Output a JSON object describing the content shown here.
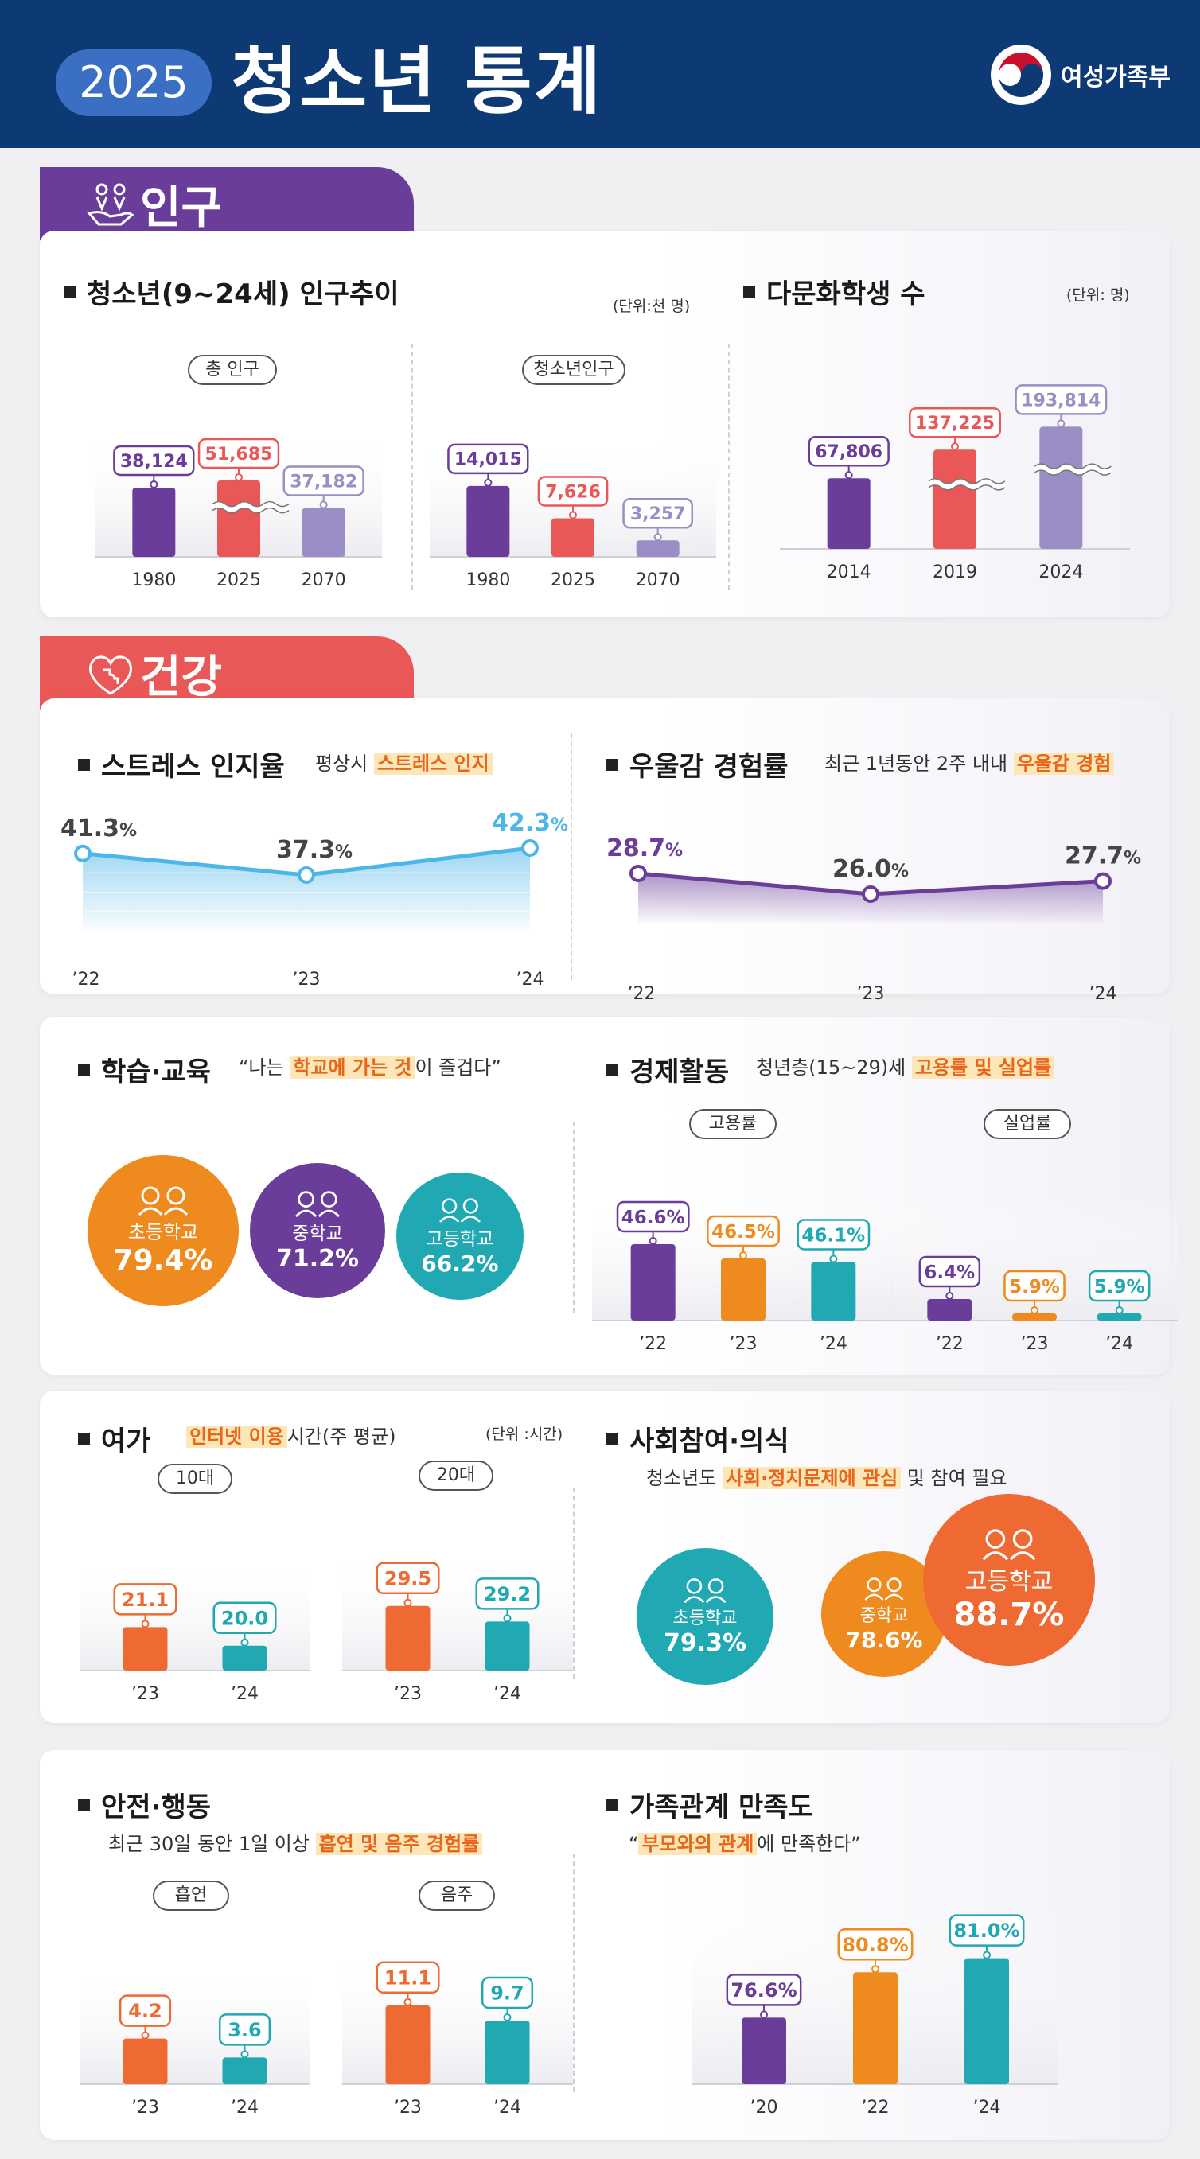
{
  "header": {
    "year": "2025",
    "title": "청소년 통계",
    "org": "여성가족부"
  },
  "sections": {
    "population": "인구",
    "health": "건강"
  },
  "colors": {
    "purple": "#6a3d9a",
    "red": "#ea5757",
    "lavender": "#9b8ec4",
    "orange": "#ef8a1f",
    "teal": "#20a8b3",
    "deeporange": "#ef6a33",
    "sky": "#4db6e8",
    "navy": "#0d3a75"
  },
  "pop": {
    "title": "청소년(9~24세) 인구추이",
    "unit": "(단위:천 명)",
    "total_label": "총 인구",
    "youth_label": "청소년인구"
  },
  "multi": {
    "title": "다문화학생 수",
    "unit": "(단위: 명)"
  },
  "stress": {
    "title": "스트레스 인지율",
    "sub_pre": "평상시 ",
    "sub_hl": "스트레스 인지"
  },
  "depression": {
    "title": "우울감 경험률",
    "sub_pre": "최근 1년동안 2주 내내 ",
    "sub_hl": "우울감 경험"
  },
  "school": {
    "title": "학습·교육",
    "sub_pre": "“나는 ",
    "sub_hl": "학교에 가는 것",
    "sub_post": "이 즐겁다”",
    "items": [
      {
        "label": "초등학교",
        "value": "79.4%"
      },
      {
        "label": "중학교",
        "value": "71.2%"
      },
      {
        "label": "고등학교",
        "value": "66.2%"
      }
    ]
  },
  "econ": {
    "title": "경제활동",
    "sub_pre": "청년층(15~29)세 ",
    "sub_hl": "고용률 및 실업률",
    "emp_label": "고용률",
    "unemp_label": "실업률"
  },
  "leisure": {
    "title": "여가",
    "sub_hl": "인터넷 이용",
    "sub_post": "시간(주 평균)",
    "unit": "(단위 :시간)",
    "teen_label": "10대",
    "twenties_label": "20대"
  },
  "social": {
    "title": "사회참여·의식",
    "sub_pre": "청소년도 ",
    "sub_hl": "사회·정치문제에 관심",
    "sub_post": " 및 참여 필요",
    "items": [
      {
        "label": "초등학교",
        "value": "79.3%"
      },
      {
        "label": "중학교",
        "value": "78.6%"
      },
      {
        "label": "고등학교",
        "value": "88.7%"
      }
    ]
  },
  "safety": {
    "title": "안전·행동",
    "sub_pre": "최근 30일 동안 1일 이상 ",
    "sub_hl": "흡연 및 음주 경험률",
    "smoke_label": "흡연",
    "drink_label": "음주"
  },
  "family": {
    "title": "가족관계 만족도",
    "sub_pre": "“",
    "sub_hl": "부모와의 관계",
    "sub_post": "에 만족한다”"
  },
  "chart_data": [
    {
      "id": "total_pop",
      "type": "bar",
      "title": "총 인구",
      "unit": "천 명",
      "categories": [
        "1980",
        "2025",
        "2070"
      ],
      "values": [
        38124,
        51685,
        37182
      ],
      "labels": [
        "38,124",
        "51,685",
        "37,182"
      ],
      "axis_break": true
    },
    {
      "id": "youth_pop",
      "type": "bar",
      "title": "청소년인구",
      "unit": "천 명",
      "categories": [
        "1980",
        "2025",
        "2070"
      ],
      "values": [
        14015,
        7626,
        3257
      ],
      "labels": [
        "14,015",
        "7,626",
        "3,257"
      ]
    },
    {
      "id": "multicultural",
      "type": "bar",
      "title": "다문화학생 수",
      "unit": "명",
      "categories": [
        "2014",
        "2019",
        "2024"
      ],
      "values": [
        67806,
        137225,
        193814
      ],
      "labels": [
        "67,806",
        "137,225",
        "193,814"
      ],
      "axis_break": true
    },
    {
      "id": "stress",
      "type": "area",
      "title": "스트레스 인지율",
      "categories": [
        "’22",
        "’23",
        "’24"
      ],
      "values": [
        41.3,
        37.3,
        42.3
      ],
      "labels": [
        "41.3%",
        "37.3%",
        "42.3%"
      ]
    },
    {
      "id": "depression",
      "type": "area",
      "title": "우울감 경험률",
      "categories": [
        "’22",
        "’23",
        "’24"
      ],
      "values": [
        28.7,
        26.0,
        27.7
      ],
      "labels": [
        "28.7%",
        "26.0%",
        "27.7%"
      ]
    },
    {
      "id": "employment",
      "type": "bar",
      "title": "고용률",
      "categories": [
        "’22",
        "’23",
        "’24"
      ],
      "values": [
        46.6,
        46.5,
        46.1
      ],
      "labels": [
        "46.6%",
        "46.5%",
        "46.1%"
      ]
    },
    {
      "id": "unemployment",
      "type": "bar",
      "title": "실업률",
      "categories": [
        "’22",
        "’23",
        "’24"
      ],
      "values": [
        6.4,
        5.9,
        5.9
      ],
      "labels": [
        "6.4%",
        "5.9%",
        "5.9%"
      ]
    },
    {
      "id": "internet_teen",
      "type": "bar",
      "title": "10대",
      "unit": "시간",
      "categories": [
        "’23",
        "’24"
      ],
      "values": [
        21.1,
        20.0
      ],
      "labels": [
        "21.1",
        "20.0"
      ]
    },
    {
      "id": "internet_20s",
      "type": "bar",
      "title": "20대",
      "unit": "시간",
      "categories": [
        "’23",
        "’24"
      ],
      "values": [
        29.5,
        29.2
      ],
      "labels": [
        "29.5",
        "29.2"
      ]
    },
    {
      "id": "smoking",
      "type": "bar",
      "title": "흡연",
      "categories": [
        "’23",
        "’24"
      ],
      "values": [
        4.2,
        3.6
      ],
      "labels": [
        "4.2",
        "3.6"
      ]
    },
    {
      "id": "drinking",
      "type": "bar",
      "title": "음주",
      "categories": [
        "’23",
        "’24"
      ],
      "values": [
        11.1,
        9.7
      ],
      "labels": [
        "11.1",
        "9.7"
      ]
    },
    {
      "id": "family_satisfaction",
      "type": "bar",
      "title": "가족관계 만족도",
      "categories": [
        "’20",
        "’22",
        "’24"
      ],
      "values": [
        76.6,
        80.8,
        81.0
      ],
      "labels": [
        "76.6%",
        "80.8%",
        "81.0%"
      ]
    }
  ]
}
